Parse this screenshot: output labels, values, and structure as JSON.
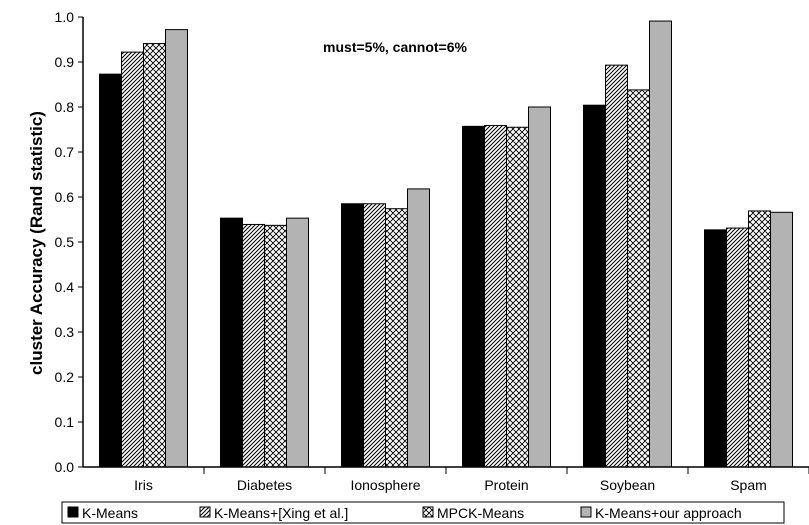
{
  "chart_data": {
    "type": "bar",
    "title": "",
    "annotation": "must=5%, cannot=6%",
    "xlabel": "",
    "ylabel": "cluster Accuracy (Rand statistic)",
    "ylim": [
      0,
      1.0
    ],
    "yticks": [
      "0.0",
      "0.1",
      "0.2",
      "0.3",
      "0.4",
      "0.5",
      "0.6",
      "0.7",
      "0.8",
      "0.9",
      "1.0"
    ],
    "grid": false,
    "legend_position": "bottom",
    "categories": [
      "Iris",
      "Diabetes",
      "Ionosphere",
      "Protein",
      "Soybean",
      "Spam"
    ],
    "series": [
      {
        "name": "K-Means",
        "pattern": "solid-black",
        "values": [
          0.873,
          0.553,
          0.585,
          0.757,
          0.804,
          0.527
        ]
      },
      {
        "name": "K-Means+[Xing et al.]",
        "pattern": "diagonal-hatch",
        "values": [
          0.922,
          0.539,
          0.585,
          0.759,
          0.893,
          0.531
        ]
      },
      {
        "name": "MPCK-Means",
        "pattern": "cross-hatch",
        "values": [
          0.941,
          0.537,
          0.574,
          0.755,
          0.838,
          0.569
        ]
      },
      {
        "name": "K-Means+our approach",
        "pattern": "solid-gray",
        "values": [
          0.972,
          0.553,
          0.618,
          0.8,
          0.991,
          0.566
        ]
      }
    ],
    "colors": {
      "black": "#000000",
      "gray": "#b3b3b3",
      "stroke": "#000000"
    }
  }
}
